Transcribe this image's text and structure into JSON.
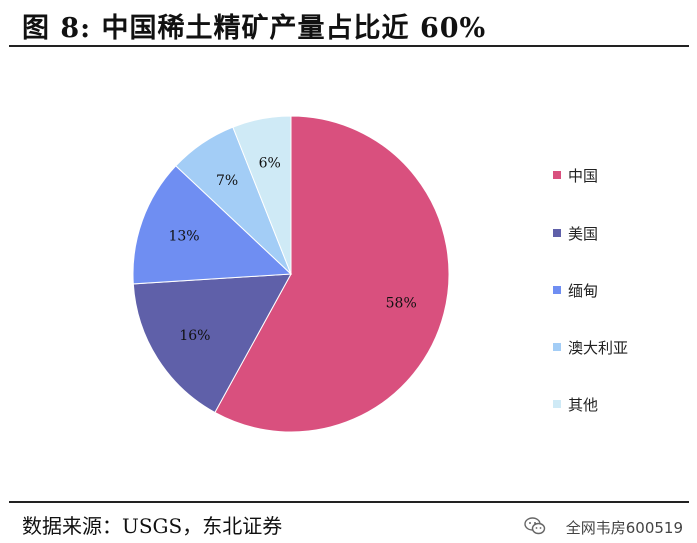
{
  "header": {
    "title": "图 8: 中国稀土精矿产量占比近 60%"
  },
  "chart_data": {
    "type": "pie",
    "categories": [
      "中国",
      "美国",
      "缅甸",
      "澳大利亚",
      "其他"
    ],
    "values": [
      58,
      16,
      13,
      7,
      6
    ],
    "value_labels": [
      "58%",
      "16%",
      "13%",
      "7%",
      "6%"
    ],
    "colors": [
      "#d9507e",
      "#5f60a9",
      "#6f8ef2",
      "#a3cdf6",
      "#cfeaf6"
    ],
    "start_angle_deg": 0,
    "direction": "clockwise",
    "legend_position": "right"
  },
  "footer": {
    "source": "数据来源：USGS，东北证券",
    "brand": "全网韦房600519"
  },
  "icons": {
    "brand_icon": "wechat-icon"
  }
}
